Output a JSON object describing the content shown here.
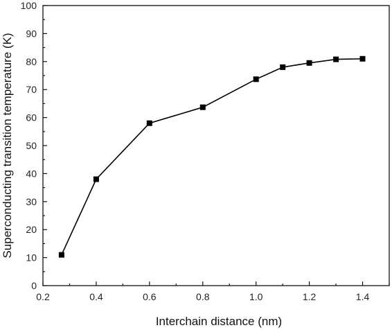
{
  "chart_data": {
    "type": "line",
    "title": "",
    "xlabel": "Interchain distance (nm)",
    "ylabel": "Superconducting transition temperature (K)",
    "xlim": [
      0.2,
      1.5
    ],
    "ylim": [
      0,
      100
    ],
    "xticks": [
      "0.2",
      "0.4",
      "0.6",
      "0.8",
      "1.0",
      "1.2",
      "1.4"
    ],
    "yticks": [
      "0",
      "10",
      "20",
      "30",
      "40",
      "50",
      "60",
      "70",
      "80",
      "90",
      "100"
    ],
    "grid": false,
    "marker": "square",
    "series": [
      {
        "name": "",
        "color": "#000000",
        "x": [
          0.27,
          0.4,
          0.6,
          0.8,
          1.0,
          1.1,
          1.2,
          1.3,
          1.4
        ],
        "y": [
          11,
          38,
          58,
          63.7,
          73.7,
          78,
          79.5,
          80.8,
          81
        ]
      }
    ]
  }
}
